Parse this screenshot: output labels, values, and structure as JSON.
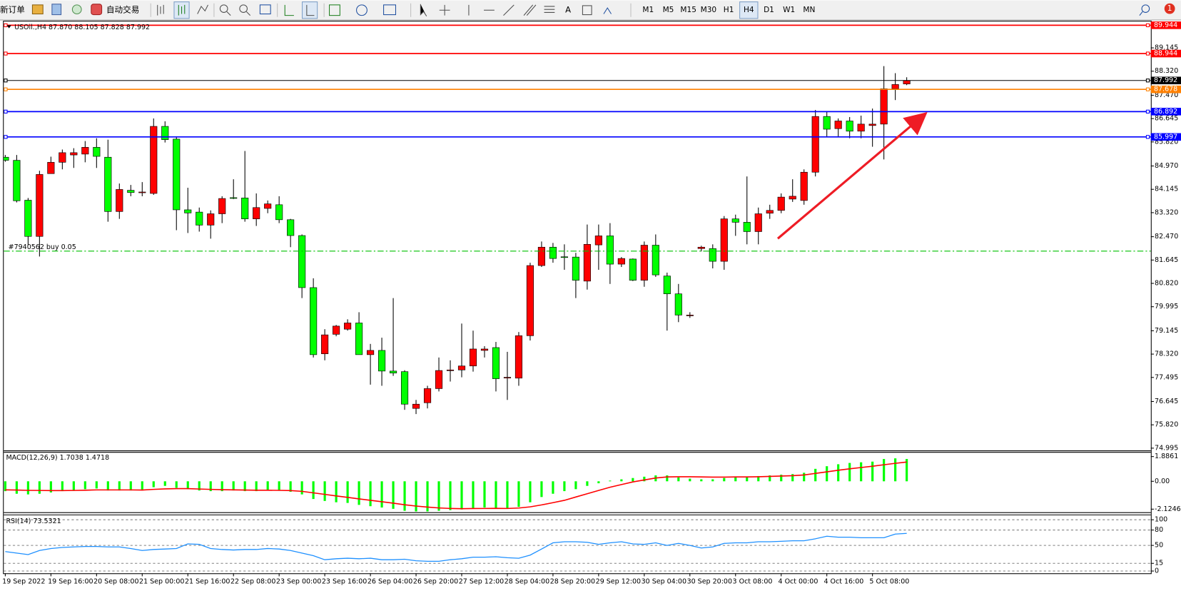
{
  "toolbar": {
    "new_order": "新订单",
    "auto_trading": "自动交易",
    "timeframes": [
      "M1",
      "M5",
      "M15",
      "M30",
      "H1",
      "H4",
      "D1",
      "W1",
      "MN"
    ],
    "active_timeframe": "H4",
    "notifications": "1"
  },
  "chart_data": [
    {
      "type": "candlestick",
      "title": "USOil.,H4 87.870 88.105 87.828 87.992",
      "categories": [
        "19 Sep 2022",
        null,
        null,
        null,
        "19 Sep 16:00",
        null,
        null,
        null,
        "20 Sep 08:00",
        null,
        null,
        null,
        "21 Sep 00:00",
        null,
        null,
        null,
        "21 Sep 16:00",
        null,
        null,
        null,
        "22 Sep 08:00",
        null,
        null,
        null,
        "23 Sep 00:00",
        null,
        null,
        null,
        "23 Sep 16:00",
        null,
        null,
        null,
        "26 Sep 04:00",
        null,
        null,
        null,
        "26 Sep 20:00",
        null,
        null,
        null,
        "27 Sep 12:00",
        null,
        null,
        null,
        "28 Sep 04:00",
        null,
        null,
        null,
        "28 Sep 20:00",
        null,
        null,
        null,
        "29 Sep 12:00",
        null,
        null,
        null,
        "30 Sep 04:00",
        null,
        null,
        null,
        "30 Sep 20:00",
        null,
        null,
        null,
        "3 Oct 08:00",
        null,
        null,
        null,
        "4 Oct 00:00",
        null,
        null,
        null,
        "4 Oct 16:00",
        null,
        null,
        null,
        "5 Oct 08:00",
        null,
        null,
        null
      ],
      "open": [
        85.28,
        85.17,
        83.76,
        82.48,
        84.7,
        85.1,
        85.36,
        85.39,
        85.63,
        85.28,
        83.36,
        84.11,
        84.03,
        84.0,
        86.37,
        85.92,
        83.42,
        83.34,
        82.88,
        83.28,
        83.85,
        83.84,
        83.1,
        83.47,
        83.6,
        83.07,
        82.51,
        80.67,
        78.33,
        79.02,
        79.2,
        79.42,
        78.3,
        78.45,
        77.72,
        77.7,
        76.4,
        76.6,
        77.1,
        77.75,
        77.76,
        77.9,
        78.45,
        78.55,
        77.49,
        77.47,
        78.97,
        81.45,
        82.1,
        81.76,
        81.75,
        80.9,
        82.18,
        82.5,
        81.5,
        81.68,
        80.93,
        82.17,
        81.08,
        80.45,
        79.7,
        82.05,
        82.05,
        81.6,
        83.1,
        82.98,
        82.65,
        83.3,
        83.4,
        83.8,
        83.75,
        84.75,
        86.72,
        86.29,
        86.56,
        86.2,
        86.4,
        86.45,
        87.7,
        87.87
      ],
      "high": [
        85.36,
        85.36,
        83.84,
        84.8,
        85.3,
        85.55,
        85.6,
        85.85,
        85.95,
        85.9,
        84.35,
        84.3,
        84.4,
        86.65,
        86.55,
        86.0,
        84.2,
        83.5,
        83.4,
        83.9,
        84.5,
        85.5,
        84.0,
        83.75,
        83.9,
        83.1,
        82.55,
        81.0,
        79.2,
        79.35,
        79.55,
        79.8,
        78.68,
        78.9,
        80.3,
        77.75,
        76.7,
        77.2,
        78.2,
        78.1,
        79.4,
        79.15,
        78.6,
        78.75,
        78.4,
        79.1,
        81.55,
        82.3,
        82.25,
        82.2,
        81.9,
        82.9,
        82.9,
        82.95,
        81.75,
        81.7,
        82.3,
        82.55,
        81.2,
        80.8,
        79.8,
        82.15,
        82.2,
        83.2,
        83.25,
        84.6,
        83.5,
        83.6,
        84.0,
        84.5,
        84.85,
        86.95,
        86.9,
        86.65,
        86.7,
        86.75,
        87.0,
        88.5,
        88.25,
        88.105
      ],
      "low": [
        85.12,
        83.68,
        82.17,
        81.77,
        84.75,
        84.85,
        84.9,
        85.1,
        84.9,
        83.0,
        83.1,
        83.9,
        83.9,
        83.95,
        85.8,
        82.7,
        82.6,
        82.65,
        82.4,
        82.95,
        83.8,
        83.0,
        82.85,
        83.3,
        82.95,
        82.1,
        80.3,
        78.2,
        78.1,
        78.95,
        79.15,
        78.3,
        77.24,
        77.2,
        77.55,
        76.35,
        76.2,
        76.4,
        77.0,
        77.35,
        77.5,
        77.7,
        78.2,
        77.0,
        76.7,
        77.2,
        78.8,
        81.4,
        81.55,
        81.3,
        80.3,
        80.6,
        81.3,
        80.8,
        81.4,
        80.9,
        80.7,
        81.05,
        79.15,
        79.45,
        79.6,
        81.95,
        81.35,
        81.3,
        82.5,
        82.2,
        82.2,
        83.1,
        83.3,
        83.7,
        83.6,
        84.6,
        86.0,
        86.0,
        85.95,
        85.95,
        85.65,
        85.2,
        87.3,
        87.828
      ],
      "close": [
        85.17,
        83.74,
        82.48,
        84.67,
        85.1,
        85.44,
        85.44,
        85.63,
        85.31,
        83.36,
        84.14,
        84.03,
        84.05,
        86.37,
        85.9,
        83.42,
        83.31,
        82.88,
        83.28,
        83.82,
        83.84,
        83.1,
        83.5,
        83.63,
        83.07,
        82.51,
        80.67,
        78.3,
        79.0,
        79.31,
        79.42,
        78.3,
        78.45,
        77.72,
        77.65,
        76.55,
        76.55,
        77.1,
        77.74,
        77.76,
        77.9,
        78.5,
        78.5,
        77.45,
        77.5,
        78.97,
        81.45,
        82.1,
        81.7,
        81.74,
        80.93,
        82.2,
        82.5,
        81.5,
        81.7,
        80.93,
        82.17,
        81.12,
        80.45,
        79.7,
        79.7,
        82.1,
        81.6,
        83.1,
        82.98,
        82.65,
        83.28,
        83.4,
        83.87,
        83.9,
        84.75,
        86.72,
        86.27,
        86.56,
        86.2,
        86.45,
        86.45,
        87.7,
        87.85,
        87.992
      ],
      "up_color": "#ff0000",
      "down_color": "#00ff00",
      "ylim": [
        74.915,
        90.078
      ],
      "yticks": [
        74.995,
        {
          "value": 75.82,
          "label": "75.820"
        },
        76.645,
        77.495,
        {
          "value": 78.32,
          "label": "78.320"
        },
        79.145,
        79.995,
        {
          "value": 80.82,
          "label": "80.820"
        },
        81.645,
        {
          "value": 82.47,
          "label": "82.470"
        },
        {
          "value": 83.32,
          "label": "83.320"
        },
        84.145,
        {
          "value": 84.97,
          "label": "84.970"
        },
        {
          "value": 85.82,
          "label": "85.820"
        },
        86.645,
        {
          "value": 87.47,
          "label": "87.470"
        },
        {
          "value": 88.32,
          "label": "88.320"
        },
        89.145
      ],
      "grid": false,
      "levels": [
        {
          "value": 89.944,
          "color": "#ff0000"
        },
        {
          "value": 88.944,
          "color": "#ff0000"
        },
        {
          "value": 87.992,
          "color": "#000000"
        },
        {
          "value": 87.678,
          "color": "#ff8000"
        },
        {
          "value": 86.892,
          "color": "#0000ff"
        },
        {
          "value": 85.997,
          "color": "#0000ff"
        }
      ],
      "order": {
        "label": "#7940562 buy 0.05",
        "value": 81.96,
        "color": "#00c000"
      }
    },
    {
      "type": "macd",
      "title": "MACD(12,26,9) 1.7038 1.4718",
      "series": [
        {
          "type": "bar",
          "color": "#00ff00",
          "values": [
            -0.75,
            -0.95,
            -1.0,
            -0.95,
            -0.85,
            -0.75,
            -0.7,
            -0.6,
            -0.55,
            -0.7,
            -0.7,
            -0.7,
            -0.7,
            -0.45,
            -0.35,
            -0.5,
            -0.6,
            -0.7,
            -0.75,
            -0.75,
            -0.7,
            -0.75,
            -0.75,
            -0.7,
            -0.7,
            -0.8,
            -1.0,
            -1.35,
            -1.5,
            -1.6,
            -1.65,
            -1.8,
            -1.9,
            -2.0,
            -2.1,
            -2.25,
            -2.3,
            -2.3,
            -2.25,
            -2.2,
            -2.15,
            -2.05,
            -2.0,
            -2.05,
            -2.1,
            -1.95,
            -1.6,
            -1.2,
            -0.95,
            -0.75,
            -0.6,
            -0.35,
            -0.15,
            0.05,
            0.15,
            0.25,
            0.35,
            0.45,
            0.45,
            0.3,
            0.2,
            0.15,
            0.15,
            0.25,
            0.3,
            0.3,
            0.4,
            0.45,
            0.5,
            0.55,
            0.65,
            0.95,
            1.15,
            1.3,
            1.4,
            1.45,
            1.5,
            1.7,
            1.75,
            1.7038
          ]
        },
        {
          "type": "line",
          "color": "#ff0000",
          "values": [
            -0.65,
            -0.67,
            -0.69,
            -0.7,
            -0.71,
            -0.71,
            -0.7,
            -0.68,
            -0.66,
            -0.66,
            -0.66,
            -0.66,
            -0.67,
            -0.62,
            -0.58,
            -0.56,
            -0.56,
            -0.59,
            -0.62,
            -0.64,
            -0.65,
            -0.67,
            -0.68,
            -0.68,
            -0.69,
            -0.71,
            -0.77,
            -0.88,
            -1.0,
            -1.12,
            -1.23,
            -1.34,
            -1.45,
            -1.56,
            -1.67,
            -1.79,
            -1.89,
            -1.97,
            -2.03,
            -2.07,
            -2.09,
            -2.08,
            -2.07,
            -2.06,
            -2.07,
            -2.04,
            -1.95,
            -1.8,
            -1.63,
            -1.45,
            -1.2,
            -0.95,
            -0.7,
            -0.45,
            -0.25,
            -0.05,
            0.1,
            0.25,
            0.33,
            0.35,
            0.35,
            0.33,
            0.32,
            0.32,
            0.33,
            0.33,
            0.35,
            0.37,
            0.4,
            0.43,
            0.48,
            0.6,
            0.72,
            0.84,
            0.95,
            1.05,
            1.15,
            1.26,
            1.37,
            1.4718
          ]
        }
      ],
      "ylim": [
        -2.36,
        2.24
      ],
      "yticks": [
        -2.1246,
        {
          "value": 0,
          "label": "0.00"
        },
        1.8861
      ],
      "grid": false
    },
    {
      "type": "line",
      "title": "RSI(14) 73.5321",
      "color": "#1e90ff",
      "values": [
        38,
        35,
        32,
        40,
        44,
        46,
        47,
        48,
        48,
        47,
        47,
        44,
        40,
        42,
        43,
        44,
        53,
        52,
        44,
        42,
        41,
        42,
        42,
        44,
        43,
        40,
        35,
        30,
        22,
        24,
        25,
        24,
        25,
        22,
        22,
        23,
        20,
        19,
        19,
        22,
        24,
        27,
        27,
        28,
        26,
        25,
        31,
        43,
        55,
        57,
        57,
        56,
        52,
        55,
        57,
        53,
        52,
        55,
        50,
        54,
        50,
        45,
        47,
        54,
        55,
        55,
        57,
        57,
        58,
        59,
        59,
        63,
        68,
        66,
        66,
        65,
        65,
        65,
        72,
        73.5321
      ],
      "ylim": [
        -4.4,
        108.8
      ],
      "yticks": [
        0,
        15,
        50,
        80,
        100
      ],
      "grid": true
    }
  ]
}
